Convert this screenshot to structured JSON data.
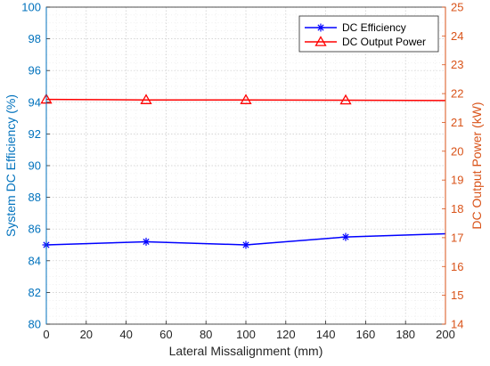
{
  "chart_data": {
    "type": "line",
    "title": "",
    "xlabel": "Lateral Missalignment (mm)",
    "ylabel_left": "System DC Efficiency (%)",
    "ylabel_right": "DC Output Power (kW)",
    "x": [
      0,
      50,
      100,
      150,
      200
    ],
    "xlim": [
      0,
      200
    ],
    "xticks": [
      "0",
      "20",
      "40",
      "60",
      "80",
      "100",
      "120",
      "140",
      "160",
      "180",
      "200"
    ],
    "ylim_left": [
      80,
      100
    ],
    "yticks_left": [
      "80",
      "82",
      "84",
      "86",
      "88",
      "90",
      "92",
      "94",
      "96",
      "98",
      "100"
    ],
    "ylim_right": [
      14,
      25
    ],
    "yticks_right": [
      "14",
      "15",
      "16",
      "17",
      "18",
      "19",
      "20",
      "21",
      "22",
      "23",
      "24",
      "25"
    ],
    "grid": true,
    "legend_position": "top-right",
    "series": [
      {
        "name": "DC Efficiency",
        "axis": "left",
        "marker": "asterisk",
        "color": "#0000ff",
        "x": [
          0,
          50,
          100,
          150,
          200
        ],
        "values": [
          85.0,
          85.2,
          85.0,
          85.5,
          85.7
        ],
        "marker_indices": [
          0,
          1,
          2,
          3
        ]
      },
      {
        "name": "DC Output Power",
        "axis": "right",
        "marker": "triangle",
        "color": "#ff0000",
        "x": [
          0,
          50,
          100,
          150,
          200
        ],
        "values": [
          21.8,
          21.78,
          21.78,
          21.77,
          21.76
        ],
        "marker_indices": [
          0,
          1,
          2,
          3
        ]
      }
    ],
    "left_axis_color": "#0072bd",
    "right_axis_color": "#d95319"
  }
}
